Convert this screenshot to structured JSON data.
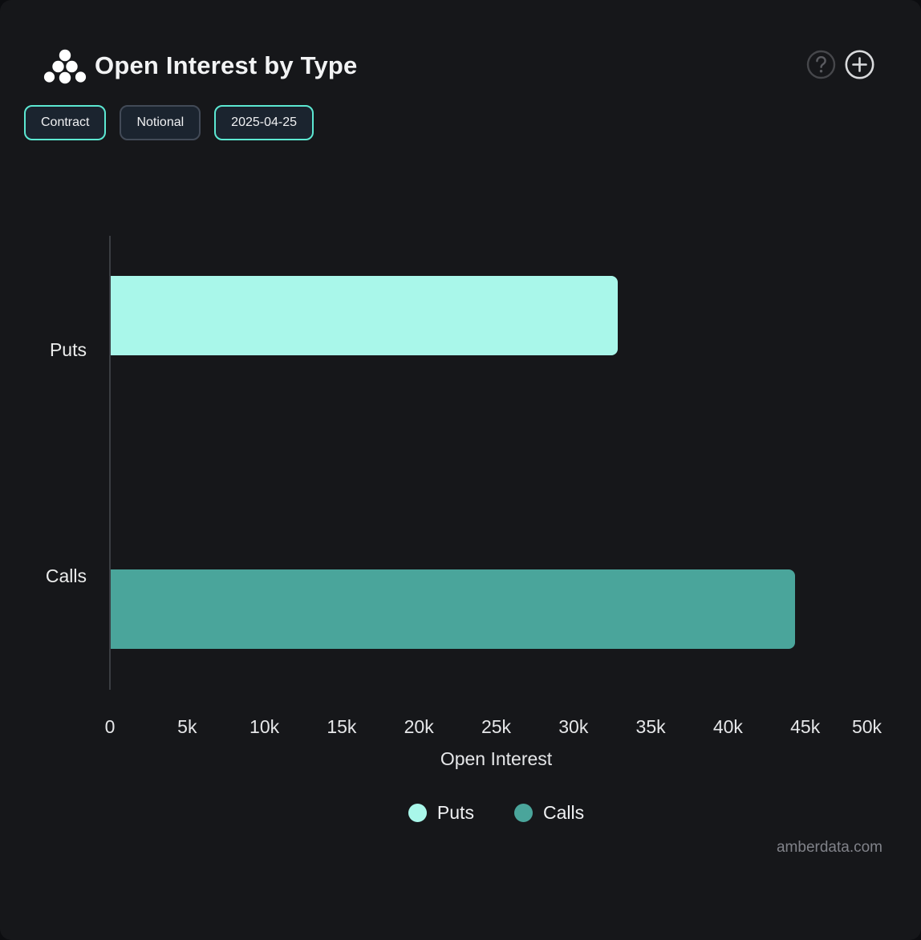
{
  "header": {
    "title": "Open Interest by Type"
  },
  "toolbar": {
    "buttons": [
      {
        "label": "Contract",
        "active": true
      },
      {
        "label": "Notional",
        "active": false
      },
      {
        "label": "2025-04-25",
        "active": true
      }
    ]
  },
  "chart_data": {
    "type": "bar",
    "orientation": "horizontal",
    "title": "Open Interest by Type",
    "categories": [
      "Puts",
      "Calls"
    ],
    "values": [
      32800,
      44300
    ],
    "colors": [
      "#a9f7ea",
      "#4aa59b"
    ],
    "xlabel": "Open Interest",
    "xlim": [
      0,
      50000
    ],
    "x_ticks": [
      {
        "label": "0",
        "value": 0
      },
      {
        "label": "5k",
        "value": 5000
      },
      {
        "label": "10k",
        "value": 10000
      },
      {
        "label": "15k",
        "value": 15000
      },
      {
        "label": "20k",
        "value": 20000
      },
      {
        "label": "25k",
        "value": 25000
      },
      {
        "label": "30k",
        "value": 30000
      },
      {
        "label": "35k",
        "value": 35000
      },
      {
        "label": "40k",
        "value": 40000
      },
      {
        "label": "45k",
        "value": 45000
      },
      {
        "label": "50k",
        "value": 50000
      }
    ],
    "legend": [
      {
        "label": "Puts",
        "color": "#a9f7ea"
      },
      {
        "label": "Calls",
        "color": "#4aa59b"
      }
    ],
    "legend_position": "bottom",
    "grid": false
  },
  "footer": {
    "watermark": "amberdata.com"
  },
  "colors": {
    "card_background": "#16171a",
    "accent_teal": "#5ce8d2",
    "chip_background": "#1b242f",
    "chip_border_inactive": "#424a57",
    "axis_line": "#3a3d42",
    "text_primary": "#f2f3f4",
    "text_muted": "#808289",
    "puts_bar": "#a9f7ea",
    "calls_bar": "#4aa59b"
  }
}
